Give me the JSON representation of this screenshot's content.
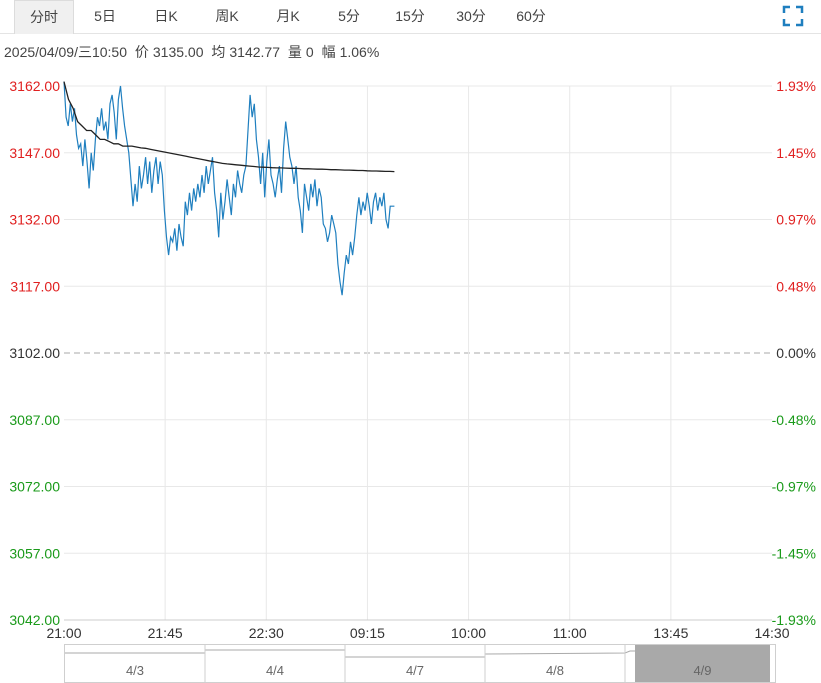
{
  "tabs": [
    {
      "label": "分时",
      "active": true
    },
    {
      "label": "5日",
      "active": false
    },
    {
      "label": "日K",
      "active": false
    },
    {
      "label": "周K",
      "active": false
    },
    {
      "label": "月K",
      "active": false
    },
    {
      "label": "5分",
      "active": false
    },
    {
      "label": "15分",
      "active": false
    },
    {
      "label": "30分",
      "active": false
    },
    {
      "label": "60分",
      "active": false
    }
  ],
  "info": {
    "datetime": "2025/04/09/三10:50",
    "price_label": "价",
    "price": "3135.00",
    "avg_label": "均",
    "avg": "3142.77",
    "volume_label": "量",
    "volume": "0",
    "range_label": "幅",
    "range": "1.06%"
  },
  "colors": {
    "up": "#e02020",
    "down": "#1a9a1a",
    "neutral": "#333333",
    "price_line": "#1f7fbf",
    "avg_line": "#222222",
    "grid": "#e8e8e8"
  },
  "icons": {
    "expand": "expand-icon"
  },
  "chart_data": {
    "type": "line",
    "ylim": [
      3042,
      3162
    ],
    "base_price": 3102,
    "y_ticks": [
      3162.0,
      3147.0,
      3132.0,
      3117.0,
      3102.0,
      3087.0,
      3072.0,
      3057.0,
      3042.0
    ],
    "y_tick_labels": [
      "3162.00",
      "3147.00",
      "3132.00",
      "3117.00",
      "3102.00",
      "3087.00",
      "3072.00",
      "3057.00",
      "3042.00"
    ],
    "pct_tick_labels": [
      "1.93%",
      "1.45%",
      "0.97%",
      "0.48%",
      "0.00%",
      "-0.48%",
      "-0.97%",
      "-1.45%",
      "-1.93%"
    ],
    "x_tick_labels": [
      "21:00",
      "21:45",
      "22:30",
      "09:15",
      "10:00",
      "11:00",
      "13:45",
      "14:30"
    ],
    "grid": true,
    "series": [
      {
        "name": "价",
        "values": [
          3163,
          3155,
          3153,
          3158,
          3154,
          3157,
          3151,
          3148,
          3149,
          3144,
          3150,
          3145,
          3139,
          3147,
          3143,
          3150,
          3155,
          3153,
          3157,
          3152,
          3154,
          3150,
          3158,
          3160,
          3156,
          3150,
          3159,
          3162,
          3157,
          3153,
          3150,
          3147,
          3141,
          3135,
          3140,
          3136,
          3144,
          3139,
          3142,
          3146,
          3140,
          3145,
          3138,
          3143,
          3146,
          3140,
          3145,
          3142,
          3134,
          3128,
          3124,
          3128,
          3127,
          3130,
          3125,
          3131,
          3128,
          3126,
          3136,
          3133,
          3138,
          3134,
          3139,
          3136,
          3140,
          3137,
          3142,
          3138,
          3144,
          3140,
          3143,
          3146,
          3138,
          3134,
          3128,
          3138,
          3132,
          3136,
          3141,
          3137,
          3133,
          3140,
          3137,
          3143,
          3140,
          3138,
          3142,
          3144,
          3152,
          3160,
          3155,
          3158,
          3150,
          3146,
          3140,
          3147,
          3137,
          3145,
          3150,
          3142,
          3140,
          3137,
          3141,
          3144,
          3138,
          3148,
          3154,
          3150,
          3146,
          3144,
          3140,
          3144,
          3137,
          3134,
          3129,
          3140,
          3137,
          3134,
          3140,
          3137,
          3141,
          3135,
          3139,
          3137,
          3131,
          3130,
          3127,
          3129,
          3133,
          3131,
          3129,
          3122,
          3118,
          3115,
          3120,
          3124,
          3122,
          3127,
          3124,
          3128,
          3133,
          3137,
          3133,
          3136,
          3134,
          3138,
          3135,
          3131,
          3136,
          3138,
          3134,
          3137,
          3135,
          3138,
          3132,
          3130,
          3135,
          3135,
          3135
        ]
      },
      {
        "name": "均",
        "values": [
          3163,
          3159,
          3157,
          3154,
          3153,
          3152,
          3152,
          3151,
          3150,
          3150,
          3149.5,
          3149,
          3149,
          3148.5,
          3148.5,
          3148.5,
          3148.3,
          3148.1,
          3148,
          3147.8,
          3147.6,
          3147.4,
          3147.2,
          3147,
          3146.8,
          3146.6,
          3146.4,
          3146.2,
          3146,
          3145.8,
          3145.6,
          3145.4,
          3145.2,
          3145,
          3144.8,
          3144.6,
          3144.5,
          3144.4,
          3144.3,
          3144.2,
          3144.1,
          3144,
          3143.9,
          3143.8,
          3143.75,
          3143.7,
          3143.65,
          3143.6,
          3143.6,
          3143.55,
          3143.5,
          3143.5,
          3143.45,
          3143.4,
          3143.4,
          3143.35,
          3143.3,
          3143.3,
          3143.25,
          3143.2,
          3143.2,
          3143.15,
          3143.1,
          3143.1,
          3143.05,
          3143,
          3143,
          3142.95,
          3142.9,
          3142.9,
          3142.85,
          3142.8,
          3142.8,
          3142.77
        ]
      }
    ]
  },
  "navigator": {
    "days": [
      {
        "label": "4/3",
        "selected": false
      },
      {
        "label": "4/4",
        "selected": false
      },
      {
        "label": "4/7",
        "selected": false
      },
      {
        "label": "4/8",
        "selected": false
      },
      {
        "label": "4/9",
        "selected": true
      }
    ]
  }
}
